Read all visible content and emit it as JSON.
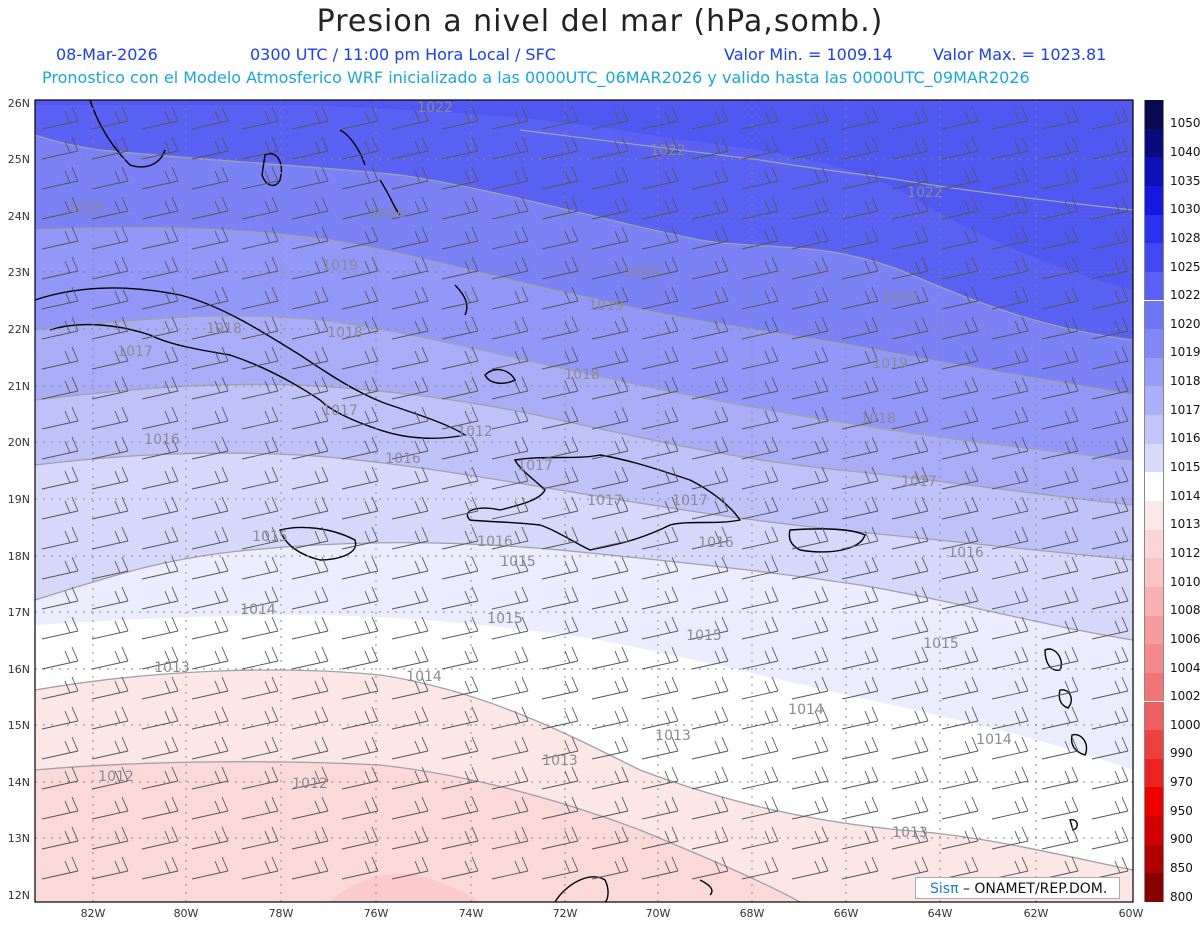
{
  "title": "Presion a nivel del mar (hPa,somb.)",
  "header": {
    "date": "08-Mar-2026",
    "time": "0300 UTC / 11:00 pm Hora Local / SFC",
    "min_label": "Valor Min. = 1009.14",
    "max_label": "Valor Max. = 1023.81",
    "description": "Pronostico con el Modelo Atmosferico WRF inicializado a las 0000UTC_06MAR2026 y valido hasta las 0000UTC_09MAR2026"
  },
  "map": {
    "lat_labels": [
      "26N",
      "25N",
      "24N",
      "23N",
      "22N",
      "21N",
      "20N",
      "19N",
      "18N",
      "17N",
      "16N",
      "15N",
      "14N",
      "13N",
      "12N"
    ],
    "lon_labels": [
      "82W",
      "80W",
      "78W",
      "76W",
      "74W",
      "72W",
      "70W",
      "68W",
      "66W",
      "64W",
      "62W",
      "60W"
    ],
    "isobar_labels": [
      "1022",
      "1022",
      "1022",
      "1020",
      "1020",
      "1020",
      "1019",
      "1019",
      "1019",
      "1019",
      "1018",
      "1018",
      "1018",
      "1018",
      "1017",
      "1017",
      "1017",
      "1017",
      "1016",
      "1016",
      "1016",
      "1016",
      "1016",
      "1015",
      "1015",
      "1015",
      "1015",
      "1015",
      "1014",
      "1014",
      "1014",
      "1014",
      "1013",
      "1013",
      "1013",
      "1013",
      "1012",
      "1012",
      "1012",
      "1017",
      "1017"
    ]
  },
  "colorbar": {
    "levels": [
      "1050",
      "1040",
      "1035",
      "1030",
      "1028",
      "1025",
      "1022",
      "1020",
      "1019",
      "1018",
      "1017",
      "1016",
      "1015",
      "1014",
      "1013",
      "1012",
      "1010",
      "1008",
      "1006",
      "1004",
      "1002",
      "1000",
      "990",
      "970",
      "950",
      "900",
      "850",
      "800"
    ],
    "colors": [
      "#0a0a50",
      "#0b0b80",
      "#0d12b8",
      "#1418e0",
      "#2a30f0",
      "#4048f4",
      "#5860f6",
      "#6c74f7",
      "#8088f8",
      "#969cf9",
      "#acb0fa",
      "#c2c5fb",
      "#d8dafc",
      "#ffffff",
      "#fde8e8",
      "#fcd6d6",
      "#fbc4c4",
      "#f9b0b0",
      "#f79c9c",
      "#f58888",
      "#f37474",
      "#f16060",
      "#ef4040",
      "#ee2020",
      "#ee0000",
      "#d40000",
      "#b00000",
      "#880000"
    ]
  },
  "credit": {
    "brand": "Sisπ",
    "text": "– ONAMET/REP.DOM."
  }
}
